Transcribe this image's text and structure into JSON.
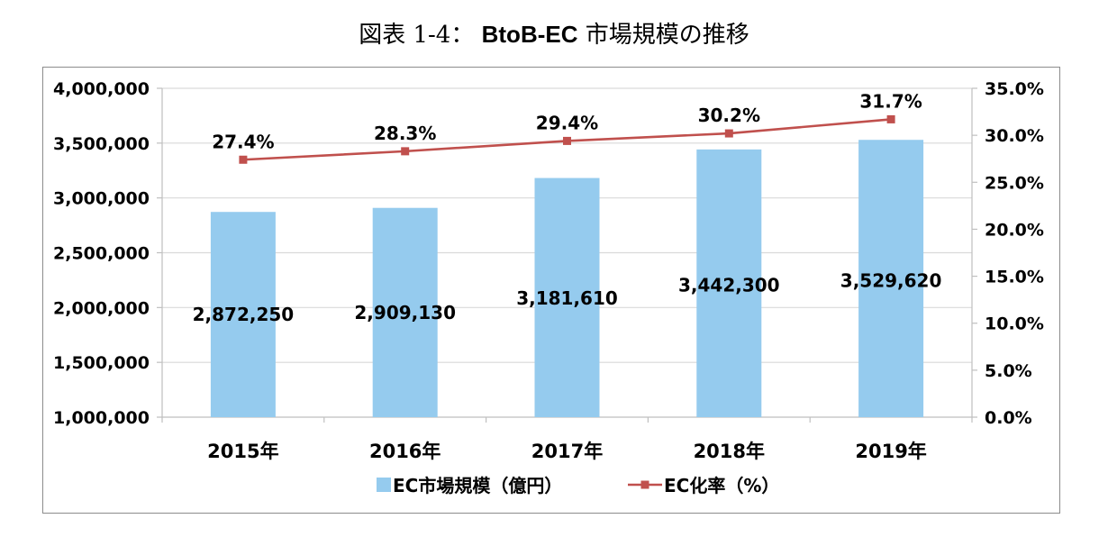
{
  "title": {
    "prefix": "図表",
    "number": "1-4：",
    "bold_part": "BtoB-EC",
    "suffix": "市場規模の推移"
  },
  "colors": {
    "bar": "#95cbee",
    "line": "#c0504d",
    "grid": "#d9d9d9",
    "axis": "#bfbfbf"
  },
  "chart_data": {
    "type": "bar",
    "categories": [
      "2015年",
      "2016年",
      "2017年",
      "2018年",
      "2019年"
    ],
    "series": [
      {
        "name": "EC市場規模（億円）",
        "type": "bar",
        "axis": "left",
        "values": [
          2872250,
          2909130,
          3181610,
          3442300,
          3529620
        ],
        "labels": [
          "2,872,250",
          "2,909,130",
          "3,181,610",
          "3,442,300",
          "3,529,620"
        ]
      },
      {
        "name": "EC化率（%）",
        "type": "line",
        "axis": "right",
        "values": [
          27.4,
          28.3,
          29.4,
          30.2,
          31.7
        ],
        "labels": [
          "27.4%",
          "28.3%",
          "29.4%",
          "30.2%",
          "31.7%"
        ]
      }
    ],
    "ylim": [
      1000000,
      4000000
    ],
    "y_ticks": [
      "1,000,000",
      "1,500,000",
      "2,000,000",
      "2,500,000",
      "3,000,000",
      "3,500,000",
      "4,000,000"
    ],
    "y2lim": [
      0,
      35
    ],
    "y2_ticks": [
      "0.0%",
      "5.0%",
      "10.0%",
      "15.0%",
      "20.0%",
      "25.0%",
      "30.0%",
      "35.0%"
    ],
    "grid": true,
    "legend": "bottom"
  }
}
